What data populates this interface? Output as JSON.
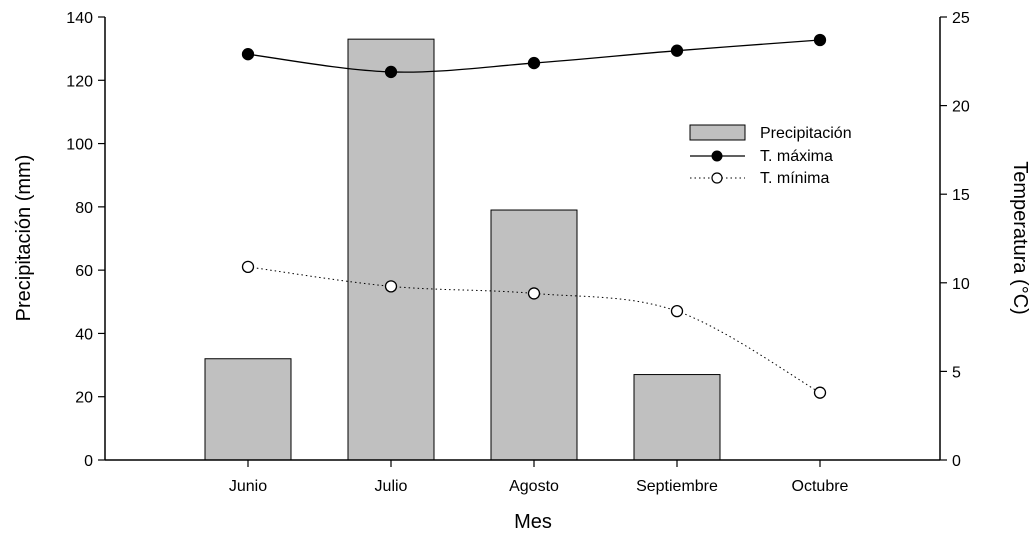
{
  "chart_data": {
    "type": "bar",
    "xlabel": "Mes",
    "ylabel_left": "Precipitación (mm)",
    "ylabel_right": "Temperatura (°C)",
    "categories": [
      "Junio",
      "Julio",
      "Agosto",
      "Septiembre",
      "Octubre"
    ],
    "ylim_left": [
      0,
      140
    ],
    "ylim_right": [
      0,
      25
    ],
    "yticks_left": [
      "0",
      "20",
      "40",
      "60",
      "80",
      "100",
      "120",
      "140"
    ],
    "yticks_right": [
      "0",
      "5",
      "10",
      "15",
      "20",
      "25"
    ],
    "grid": false,
    "legend_position": "top-right",
    "series": [
      {
        "name": "Precipitación",
        "kind": "bar",
        "axis": "left",
        "color": "#c0c0c0",
        "values": [
          32,
          133,
          79,
          27,
          null
        ]
      },
      {
        "name": "T. máxima",
        "kind": "line",
        "axis": "right",
        "line": "solid",
        "marker": "filled-circle",
        "values": [
          22.9,
          21.9,
          22.4,
          23.1,
          23.7
        ]
      },
      {
        "name": "T. mínima",
        "kind": "line",
        "axis": "right",
        "line": "dotted",
        "marker": "open-circle",
        "values": [
          10.9,
          9.8,
          9.4,
          8.4,
          3.8
        ]
      }
    ]
  }
}
